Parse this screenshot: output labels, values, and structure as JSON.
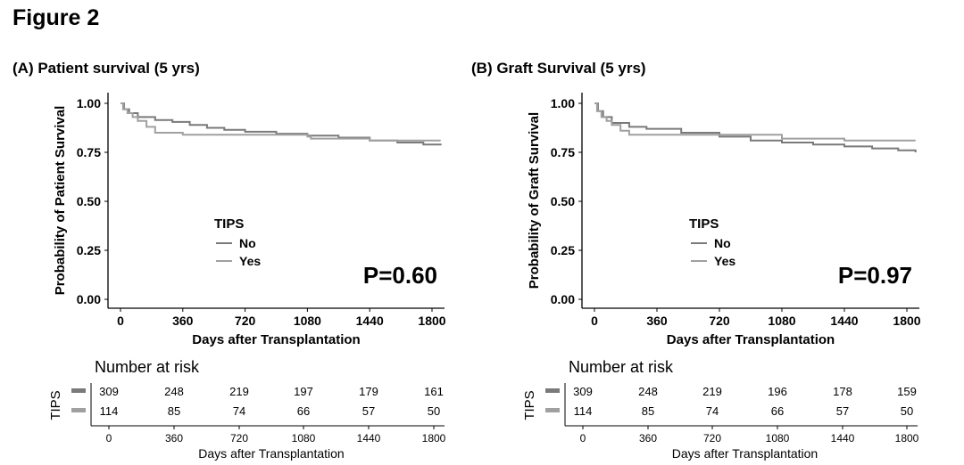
{
  "figure_title": "Figure 2",
  "chart_data": [
    {
      "type": "line",
      "title": "(A) Patient survival (5 yrs)",
      "xlabel": "Days after Transplantation",
      "ylabel": "Probability of Patient Survival",
      "xlim": [
        0,
        1850
      ],
      "ylim": [
        0,
        1
      ],
      "xticks": [
        "0",
        "360",
        "720",
        "1080",
        "1440",
        "1800"
      ],
      "xtick_values": [
        0,
        360,
        720,
        1080,
        1440,
        1800
      ],
      "yticks": [
        "0.00",
        "0.25",
        "0.50",
        "0.75",
        "1.00"
      ],
      "ytick_values": [
        0,
        0.25,
        0.5,
        0.75,
        1.0
      ],
      "grid": false,
      "legend": {
        "title": "TIPS",
        "position": "center-left",
        "entries": [
          "No",
          "Yes"
        ]
      },
      "annotation": "P=0.60",
      "series": [
        {
          "name": "No",
          "color": "#7a7a7a",
          "x": [
            0,
            20,
            50,
            100,
            200,
            300,
            400,
            500,
            600,
            720,
            900,
            1080,
            1260,
            1440,
            1600,
            1750,
            1850
          ],
          "y": [
            1.0,
            0.97,
            0.95,
            0.93,
            0.915,
            0.905,
            0.89,
            0.875,
            0.865,
            0.855,
            0.845,
            0.835,
            0.825,
            0.81,
            0.8,
            0.79,
            0.785
          ]
        },
        {
          "name": "Yes",
          "color": "#a0a0a0",
          "x": [
            0,
            15,
            40,
            70,
            100,
            150,
            200,
            360,
            1000,
            1080,
            1100,
            1440,
            1850
          ],
          "y": [
            1.0,
            0.97,
            0.95,
            0.93,
            0.91,
            0.88,
            0.85,
            0.84,
            0.84,
            0.83,
            0.82,
            0.81,
            0.81
          ]
        }
      ],
      "risk_table": {
        "heading": "Number at risk",
        "strata_label": "TIPS",
        "rows": [
          {
            "name": "No",
            "color": "#7a7a7a",
            "values": [
              "309",
              "248",
              "219",
              "197",
              "179",
              "161"
            ]
          },
          {
            "name": "Yes",
            "color": "#a0a0a0",
            "values": [
              "114",
              "85",
              "74",
              "66",
              "57",
              "50"
            ]
          }
        ],
        "xticks": [
          "0",
          "360",
          "720",
          "1080",
          "1440",
          "1800"
        ],
        "xlabel": "Days after Transplantation"
      }
    },
    {
      "type": "line",
      "title": "(B) Graft Survival (5 yrs)",
      "xlabel": "Days after Transplantation",
      "ylabel": "Probability of Graft Survival",
      "xlim": [
        0,
        1850
      ],
      "ylim": [
        0,
        1
      ],
      "xticks": [
        "0",
        "360",
        "720",
        "1080",
        "1440",
        "1800"
      ],
      "xtick_values": [
        0,
        360,
        720,
        1080,
        1440,
        1800
      ],
      "yticks": [
        "0.00",
        "0.25",
        "0.50",
        "0.75",
        "1.00"
      ],
      "ytick_values": [
        0,
        0.25,
        0.5,
        0.75,
        1.0
      ],
      "grid": false,
      "legend": {
        "title": "TIPS",
        "position": "center-left",
        "entries": [
          "No",
          "Yes"
        ]
      },
      "annotation": "P=0.97",
      "series": [
        {
          "name": "No",
          "color": "#7a7a7a",
          "x": [
            0,
            20,
            50,
            100,
            200,
            300,
            500,
            720,
            900,
            1080,
            1260,
            1440,
            1600,
            1750,
            1850
          ],
          "y": [
            1.0,
            0.96,
            0.93,
            0.9,
            0.88,
            0.87,
            0.85,
            0.83,
            0.81,
            0.8,
            0.79,
            0.78,
            0.77,
            0.76,
            0.75
          ]
        },
        {
          "name": "Yes",
          "color": "#a0a0a0",
          "x": [
            0,
            15,
            40,
            70,
            100,
            150,
            200,
            360,
            720,
            1080,
            1440,
            1850
          ],
          "y": [
            1.0,
            0.96,
            0.93,
            0.91,
            0.89,
            0.86,
            0.84,
            0.84,
            0.84,
            0.82,
            0.81,
            0.81
          ]
        }
      ],
      "risk_table": {
        "heading": "Number at risk",
        "strata_label": "TIPS",
        "rows": [
          {
            "name": "No",
            "color": "#7a7a7a",
            "values": [
              "309",
              "248",
              "219",
              "196",
              "178",
              "159"
            ]
          },
          {
            "name": "Yes",
            "color": "#a0a0a0",
            "values": [
              "114",
              "85",
              "74",
              "66",
              "57",
              "50"
            ]
          }
        ],
        "xticks": [
          "0",
          "360",
          "720",
          "1080",
          "1440",
          "1800"
        ],
        "xlabel": "Days after Transplantation"
      }
    }
  ]
}
